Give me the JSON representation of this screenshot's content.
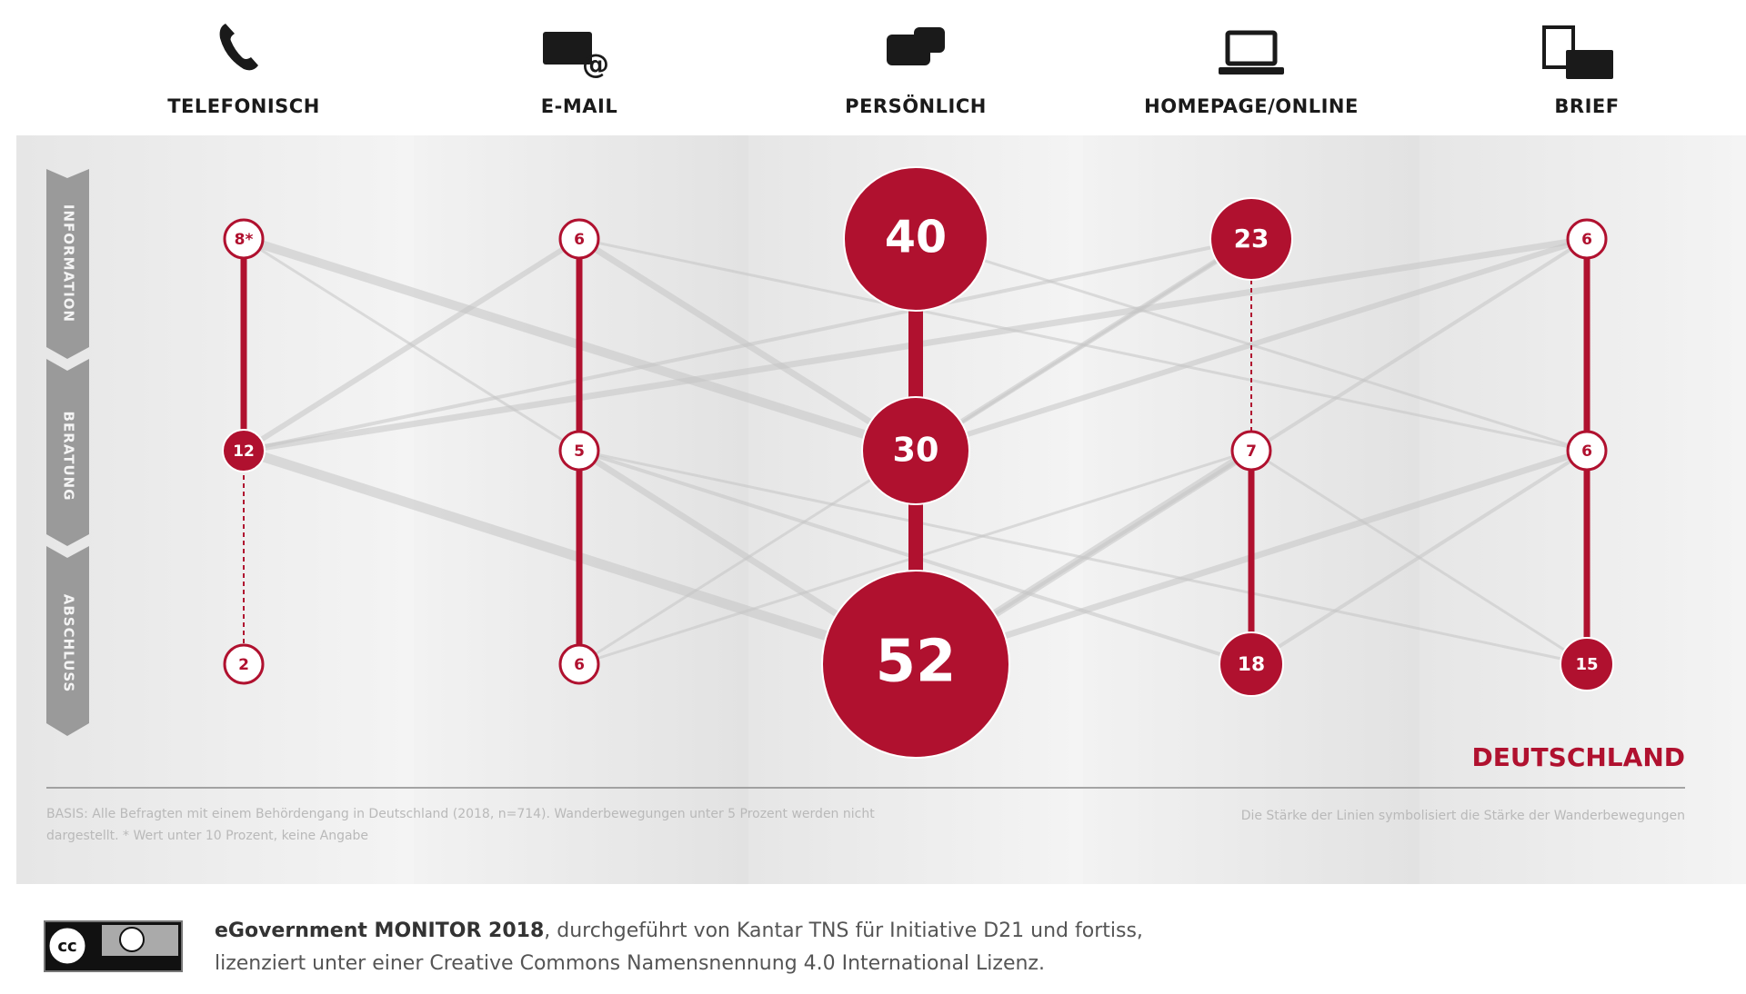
{
  "chart_data": {
    "type": "bubble",
    "stages": [
      "INFORMATION",
      "BERATUNG",
      "ABSCHLUSS"
    ],
    "columns": [
      {
        "name": "TELEFONISCH",
        "values": [
          8,
          12,
          2
        ],
        "value_labels": [
          "8*",
          "12",
          "2"
        ],
        "links": [
          "solid",
          "dashed"
        ]
      },
      {
        "name": "E-MAIL",
        "values": [
          6,
          5,
          6
        ],
        "links": [
          "solid",
          "solid"
        ]
      },
      {
        "name": "PERSÖNLICH",
        "values": [
          40,
          30,
          52
        ],
        "links": [
          "solid",
          "solid"
        ]
      },
      {
        "name": "HOMEPAGE/ONLINE",
        "values": [
          23,
          7,
          18
        ],
        "links": [
          "dashed",
          "solid"
        ]
      },
      {
        "name": "BRIEF",
        "values": [
          6,
          6,
          15
        ],
        "links": [
          "solid",
          "solid"
        ]
      }
    ],
    "color": "#b0112f",
    "region": "DEUTSCHLAND",
    "note_left": "BASIS: Alle Befragten mit einem Behördengang in Deutschland (2018, n=714). Wanderbewegungen unter 5 Prozent werden nicht dargestellt. * Wert unter 10 Prozent, keine Angabe",
    "note_right": "Die Stärke der Linien symbolisiert die Stärke der Wanderbewegungen"
  },
  "footer": {
    "source": "eGovernment MONITOR 2018",
    "text": ", durchgeführt von Kantar TNS für Initiative D21 und fortiss,",
    "license": "lizenziert unter einer Creative Commons Namensnennung 4.0 International Lizenz.",
    "badge": "cc"
  }
}
